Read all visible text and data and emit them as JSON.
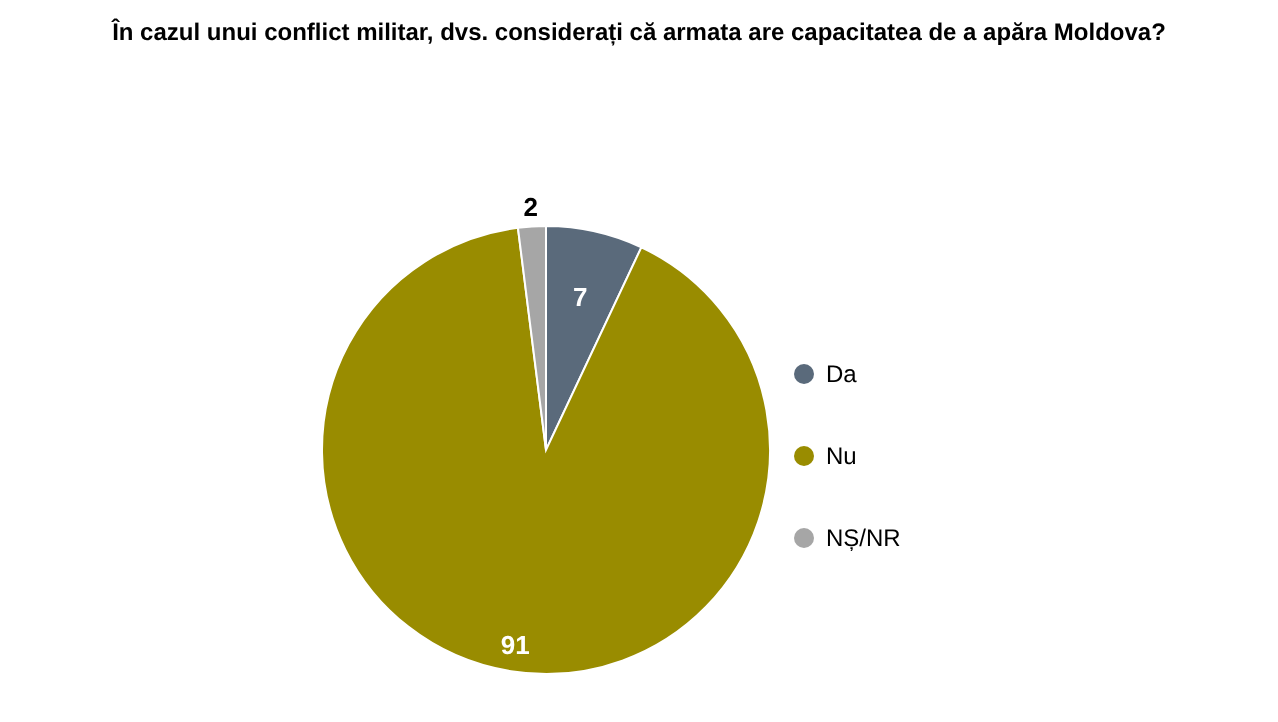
{
  "chart_data": {
    "type": "pie",
    "title": "În cazul unui conflict militar, dvs. considerați că armata are capacitatea de a apăra Moldova?",
    "categories": [
      "Da",
      "Nu",
      "NȘ/NR"
    ],
    "values": [
      7,
      91,
      2
    ],
    "colors": [
      "#5a6a7b",
      "#998c00",
      "#a6a6a6"
    ],
    "data_labels": true,
    "legend": "right"
  }
}
